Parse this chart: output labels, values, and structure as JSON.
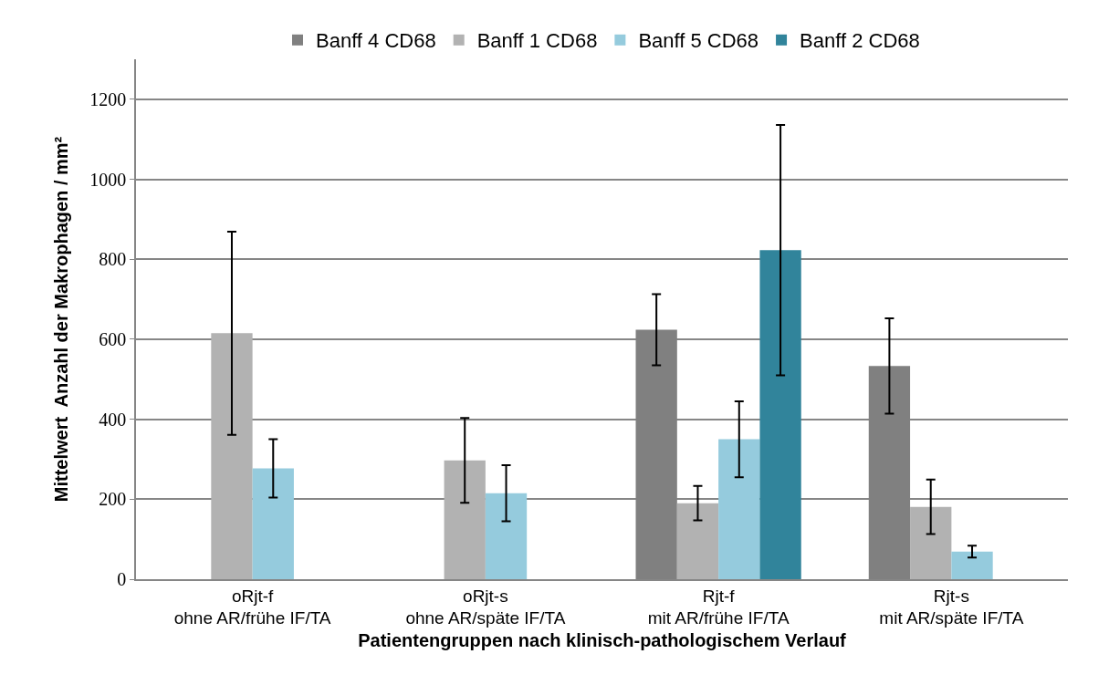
{
  "chart_data": {
    "type": "bar",
    "xlabel": "Patientengruppen nach klinisch-pathologischem Verlauf",
    "ylabel": "Mittelwert  Anzahl der Makrophagen / mm²",
    "categories": [
      "oRjt-f\nohne AR/frühe IF/TA",
      "oRjt-s\nohne AR/späte IF/TA",
      "Rjt-f\nmit AR/frühe IF/TA",
      "Rjt-s\nmit AR/späte IF/TA"
    ],
    "series": [
      {
        "name": "Banff 4 CD68",
        "color": "#808080",
        "values": [
          null,
          null,
          624,
          533
        ],
        "errors": [
          null,
          null,
          89,
          119
        ]
      },
      {
        "name": "Banff 1 CD68",
        "color": "#b2b2b2",
        "values": [
          615,
          297,
          190,
          181
        ],
        "errors": [
          254,
          106,
          43,
          68
        ]
      },
      {
        "name": "Banff 5 CD68",
        "color": "#95cbdd",
        "values": [
          277,
          215,
          350,
          69
        ],
        "errors": [
          73,
          70,
          95,
          15
        ]
      },
      {
        "name": "Banff 2 CD68",
        "color": "#31849b",
        "values": [
          null,
          null,
          823,
          null
        ],
        "errors": [
          null,
          null,
          313,
          null
        ]
      }
    ],
    "ylim": [
      0,
      1300
    ],
    "yticks": [
      0,
      200,
      400,
      600,
      800,
      1000,
      1200
    ],
    "grid": "y",
    "legend": "top"
  }
}
